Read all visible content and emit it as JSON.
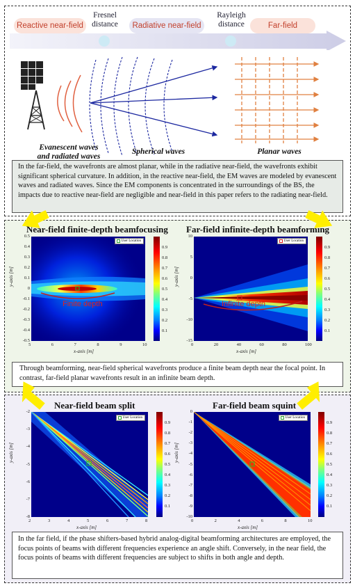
{
  "top": {
    "zones": {
      "reactive": "Reactive near-field",
      "radiative": "Radiative near-field",
      "far": "Far-field"
    },
    "distances": {
      "fresnel": "Fresnel distance",
      "rayleigh": "Rayleigh distance"
    },
    "wave_labels": {
      "evanescent": "Evanescent waves and radiated waves",
      "spherical": "Spherical waves",
      "planar": "Planar waves"
    },
    "description": "In the far-field, the wavefronts are almost planar, while in the radiative near-field, the wavefronts exhibit significant spherical curvature. In addition, in the reactive near-field, the EM waves are modeled by evanescent waves and radiated waves. Since the EM components is concentrated in the surroundings of the BS, the impacts due to reactive near-field are negligible and near-field in this paper refers to the radiating near-field."
  },
  "middle": {
    "left_title": "Near-field finite-depth beamfocusing",
    "right_title": "Far-field infinite-depth beamforming",
    "left_annotation": "Finite depth",
    "right_annotation": "Infinite depth",
    "legend": "User Location",
    "description": "Through beamforming, near-field spherical wavefronts produce a finite beam depth near the focal point. In contrast, far-field planar wavefronts result in an infinite beam depth."
  },
  "bottom": {
    "left_title": "Near-field beam split",
    "right_title": "Far-field beam squint",
    "legend": "User Location",
    "description": "In the far field, if the phase shifters-based hybrid analog-digital beamforming architectures are employed, the focus points of beams with different frequencies experience an angle shift. Conversely, in the near field, the focus points of beams with different frequencies are subject to shifts in both angle and depth."
  },
  "colorbar_ticks": [
    "0.9",
    "0.8",
    "0.7",
    "0.6",
    "0.5",
    "0.4",
    "0.3",
    "0.2",
    "0.1"
  ],
  "chart_data": [
    {
      "type": "heatmap",
      "title": "Near-field finite-depth beamfocusing",
      "xlabel": "x-axis [m]",
      "ylabel": "y-axis [m]",
      "xlim": [
        5,
        10
      ],
      "ylim": [
        -0.5,
        0.5
      ],
      "xticks": [
        "5",
        "6",
        "7",
        "8",
        "9",
        "10"
      ],
      "yticks": [
        "0.5",
        "0.4",
        "0.3",
        "0.2",
        "0.1",
        "0",
        "-0.1",
        "-0.2",
        "-0.3",
        "-0.4",
        "-0.5"
      ],
      "user_location": [
        7,
        0
      ],
      "colorbar": [
        0,
        1
      ]
    },
    {
      "type": "heatmap",
      "title": "Far-field infinite-depth beamforming",
      "xlabel": "x-axis [m]",
      "ylabel": "y-axis [m]",
      "xlim": [
        0,
        100
      ],
      "ylim": [
        -15,
        10
      ],
      "xticks": [
        "0",
        "20",
        "40",
        "60",
        "80",
        "100"
      ],
      "yticks": [
        "10",
        "5",
        "0",
        "-5",
        "-10",
        "-15"
      ],
      "user_location": [
        40,
        0
      ],
      "colorbar": [
        0,
        1
      ]
    },
    {
      "type": "heatmap",
      "title": "Near-field beam split",
      "xlabel": "x-axis [m]",
      "ylabel": "y-axis [m]",
      "xlim": [
        2,
        8
      ],
      "ylim": [
        -8,
        -2
      ],
      "xticks": [
        "2",
        "3",
        "4",
        "5",
        "6",
        "7",
        "8"
      ],
      "yticks": [
        "-2",
        "-3",
        "-4",
        "-5",
        "-6",
        "-7",
        "-8"
      ],
      "user_location": [
        5,
        -5
      ],
      "colorbar": [
        0,
        1
      ]
    },
    {
      "type": "heatmap",
      "title": "Far-field beam squint",
      "xlabel": "x-axis [m]",
      "ylabel": "y-axis [m]",
      "xlim": [
        0,
        10
      ],
      "ylim": [
        -10,
        0
      ],
      "xticks": [
        "0",
        "2",
        "4",
        "6",
        "8",
        "10"
      ],
      "yticks": [
        "0",
        "-1",
        "-2",
        "-3",
        "-4",
        "-5",
        "-6",
        "-7",
        "-8",
        "-9",
        "-10"
      ],
      "user_location": [
        5,
        -5
      ],
      "colorbar": [
        0,
        1
      ]
    }
  ]
}
